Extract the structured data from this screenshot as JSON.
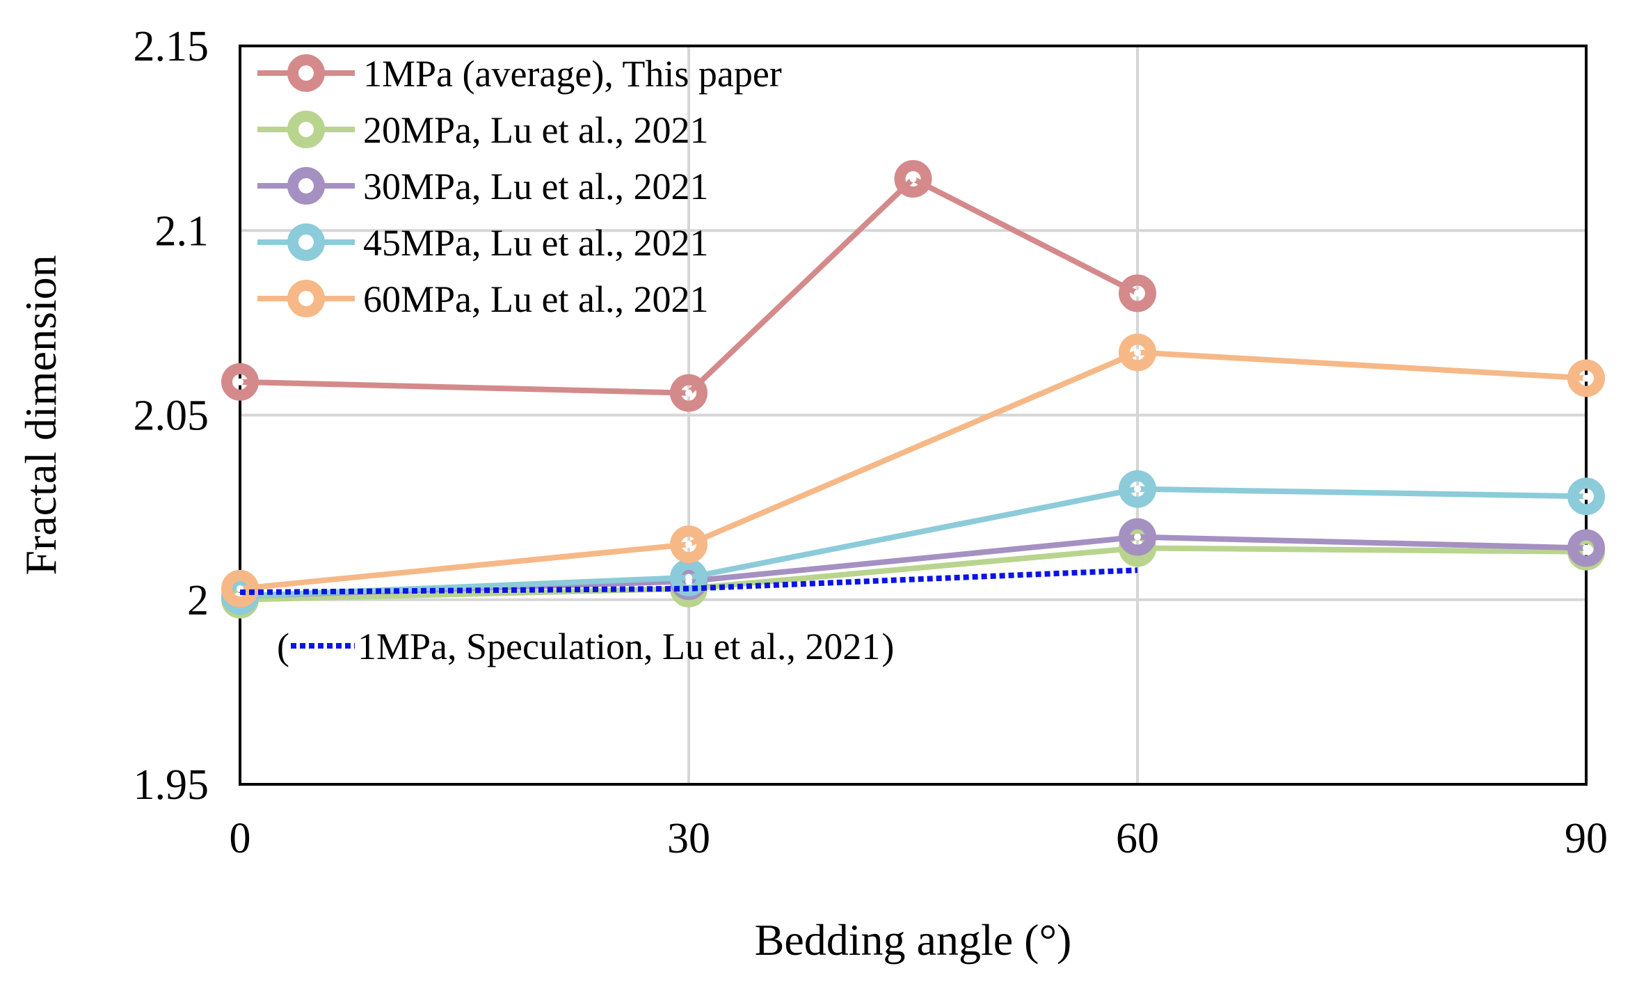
{
  "chart_data": {
    "type": "line",
    "title": "",
    "xlabel": "Bedding angle (°)",
    "ylabel": "Fractal dimension",
    "xlim": [
      0,
      90
    ],
    "ylim": [
      1.95,
      2.15
    ],
    "x_ticks": [
      0,
      30,
      60,
      90
    ],
    "x_tick_labels": [
      "0",
      "30",
      "60",
      "90"
    ],
    "y_ticks": [
      1.95,
      2.0,
      2.05,
      2.1,
      2.15
    ],
    "y_tick_labels": [
      "1.95",
      "2",
      "2.05",
      "2.1",
      "2.15"
    ],
    "grid": true,
    "legend_position": "top-left",
    "series": [
      {
        "name": "1MPa (average), This paper",
        "color": "#d48a8a",
        "x": [
          0,
          30,
          45,
          60
        ],
        "y": [
          2.059,
          2.056,
          2.114,
          2.083
        ]
      },
      {
        "name": "20MPa, Lu et al., 2021",
        "color": "#b9d48e",
        "x": [
          0,
          30,
          60,
          90
        ],
        "y": [
          2.0,
          2.003,
          2.014,
          2.013
        ]
      },
      {
        "name": "30MPa, Lu et al., 2021",
        "color": "#a590c2",
        "x": [
          0,
          30,
          60,
          90
        ],
        "y": [
          2.001,
          2.005,
          2.017,
          2.014
        ]
      },
      {
        "name": "45MPa, Lu et al., 2021",
        "color": "#8ccbd9",
        "x": [
          0,
          30,
          60,
          90
        ],
        "y": [
          2.001,
          2.006,
          2.03,
          2.028
        ]
      },
      {
        "name": "60MPa, Lu et al., 2021",
        "color": "#f6b887",
        "x": [
          0,
          30,
          60,
          90
        ],
        "y": [
          2.003,
          2.015,
          2.067,
          2.06
        ]
      }
    ],
    "speculation": {
      "name": "1MPa, Speculation, Lu et al., 2021",
      "prefix": "(",
      "suffix": ")",
      "color": "#0a14e6",
      "x": [
        0,
        30,
        60
      ],
      "y": [
        2.002,
        2.003,
        2.008
      ]
    }
  }
}
